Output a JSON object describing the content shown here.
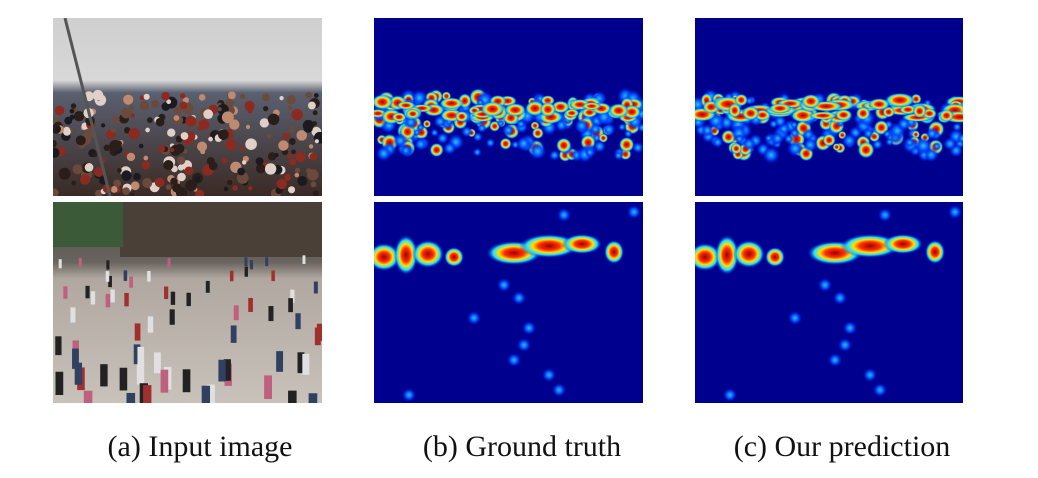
{
  "captions": [
    "(a) Input image",
    "(b) Ground truth",
    "(c) Our prediction"
  ]
}
